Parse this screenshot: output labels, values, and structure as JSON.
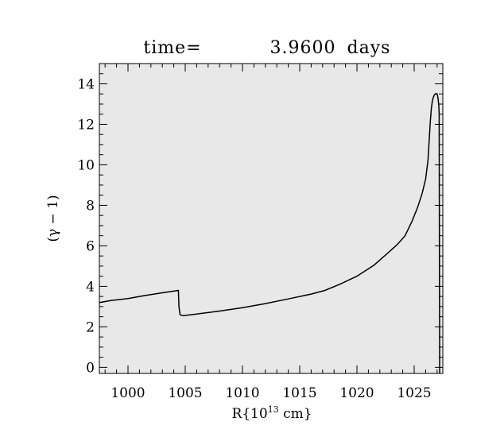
{
  "chart_data": {
    "type": "line",
    "title_left": "time=",
    "title_value": "3.9600",
    "title_unit": "days",
    "xlabel": "R{10^13 cm}",
    "xlabel_parts": {
      "base": "R{10",
      "exp": "13",
      "tail": " cm}"
    },
    "ylabel": "(γ − 1)",
    "xlim": [
      997.5,
      1027.5
    ],
    "ylim": [
      -0.3,
      15.0
    ],
    "x_ticks": [
      1000,
      1005,
      1010,
      1015,
      1020,
      1025
    ],
    "x_tick_labels": [
      "1000",
      "1005",
      "1010",
      "1015",
      "1020",
      "1025"
    ],
    "y_ticks": [
      0,
      2,
      4,
      6,
      8,
      10,
      12,
      14
    ],
    "y_tick_labels": [
      "0",
      "2",
      "4",
      "6",
      "8",
      "10",
      "12",
      "14"
    ],
    "x_minor_step": 1,
    "y_minor_step": 0.5,
    "grid": false,
    "background_color": "#e8e8e8",
    "line_color": "#000000",
    "series": [
      {
        "x": [
          997.5,
          998.5,
          1000,
          1001.5,
          1003,
          1004.4,
          1004.45,
          1004.55,
          1004.8,
          1006,
          1008,
          1010,
          1012,
          1014,
          1016,
          1017.2,
          1018.5,
          1020,
          1021.5,
          1022.5,
          1023.5,
          1024.2,
          1024.8,
          1025.3,
          1025.7,
          1026.0,
          1026.2,
          1026.3,
          1026.4,
          1026.5,
          1026.6,
          1026.75,
          1026.9,
          1027.0,
          1027.08,
          1027.15,
          1027.18,
          1027.2,
          1027.22,
          1027.22
        ],
        "y": [
          3.2,
          3.3,
          3.4,
          3.55,
          3.68,
          3.8,
          3.0,
          2.6,
          2.55,
          2.63,
          2.78,
          2.95,
          3.15,
          3.38,
          3.62,
          3.8,
          4.1,
          4.5,
          5.05,
          5.55,
          6.05,
          6.5,
          7.2,
          7.9,
          8.6,
          9.3,
          10.2,
          11.1,
          12.1,
          12.8,
          13.2,
          13.45,
          13.52,
          13.5,
          13.3,
          12.9,
          12.5,
          6.0,
          1.0,
          -0.3
        ]
      }
    ]
  }
}
